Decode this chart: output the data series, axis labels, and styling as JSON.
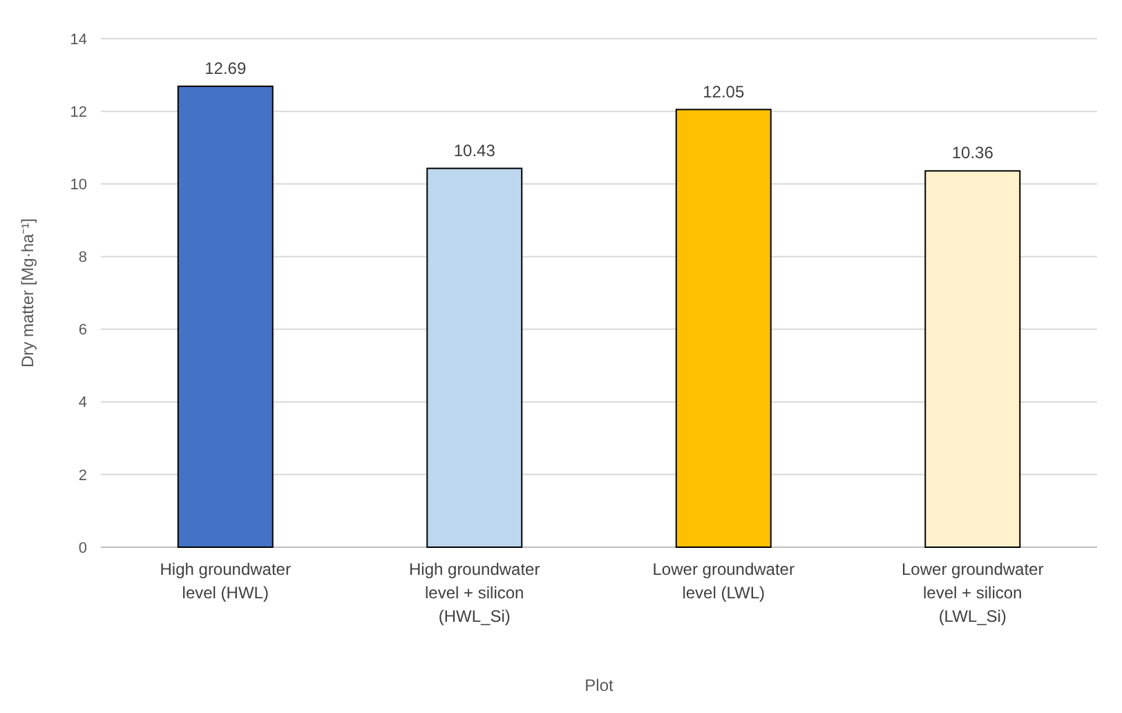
{
  "chart_data": {
    "type": "bar",
    "xlabel": "Plot",
    "ylabel": "Dry matter [Mg·ha⁻¹]",
    "categories": [
      "High groundwater level (HWL)",
      "High groundwater level + silicon (HWL_Si)",
      "Lower groundwater level (LWL)",
      "Lower groundwater level + silicon (LWL_Si)"
    ],
    "values": [
      12.69,
      10.43,
      12.05,
      10.36
    ],
    "colors": [
      "#4472c4",
      "#bdd7ee",
      "#ffc000",
      "#fff2cc"
    ],
    "ylim": [
      0,
      14
    ],
    "yticks": [
      0,
      2,
      4,
      6,
      8,
      10,
      12,
      14
    ],
    "grid": true,
    "data_labels": true
  }
}
